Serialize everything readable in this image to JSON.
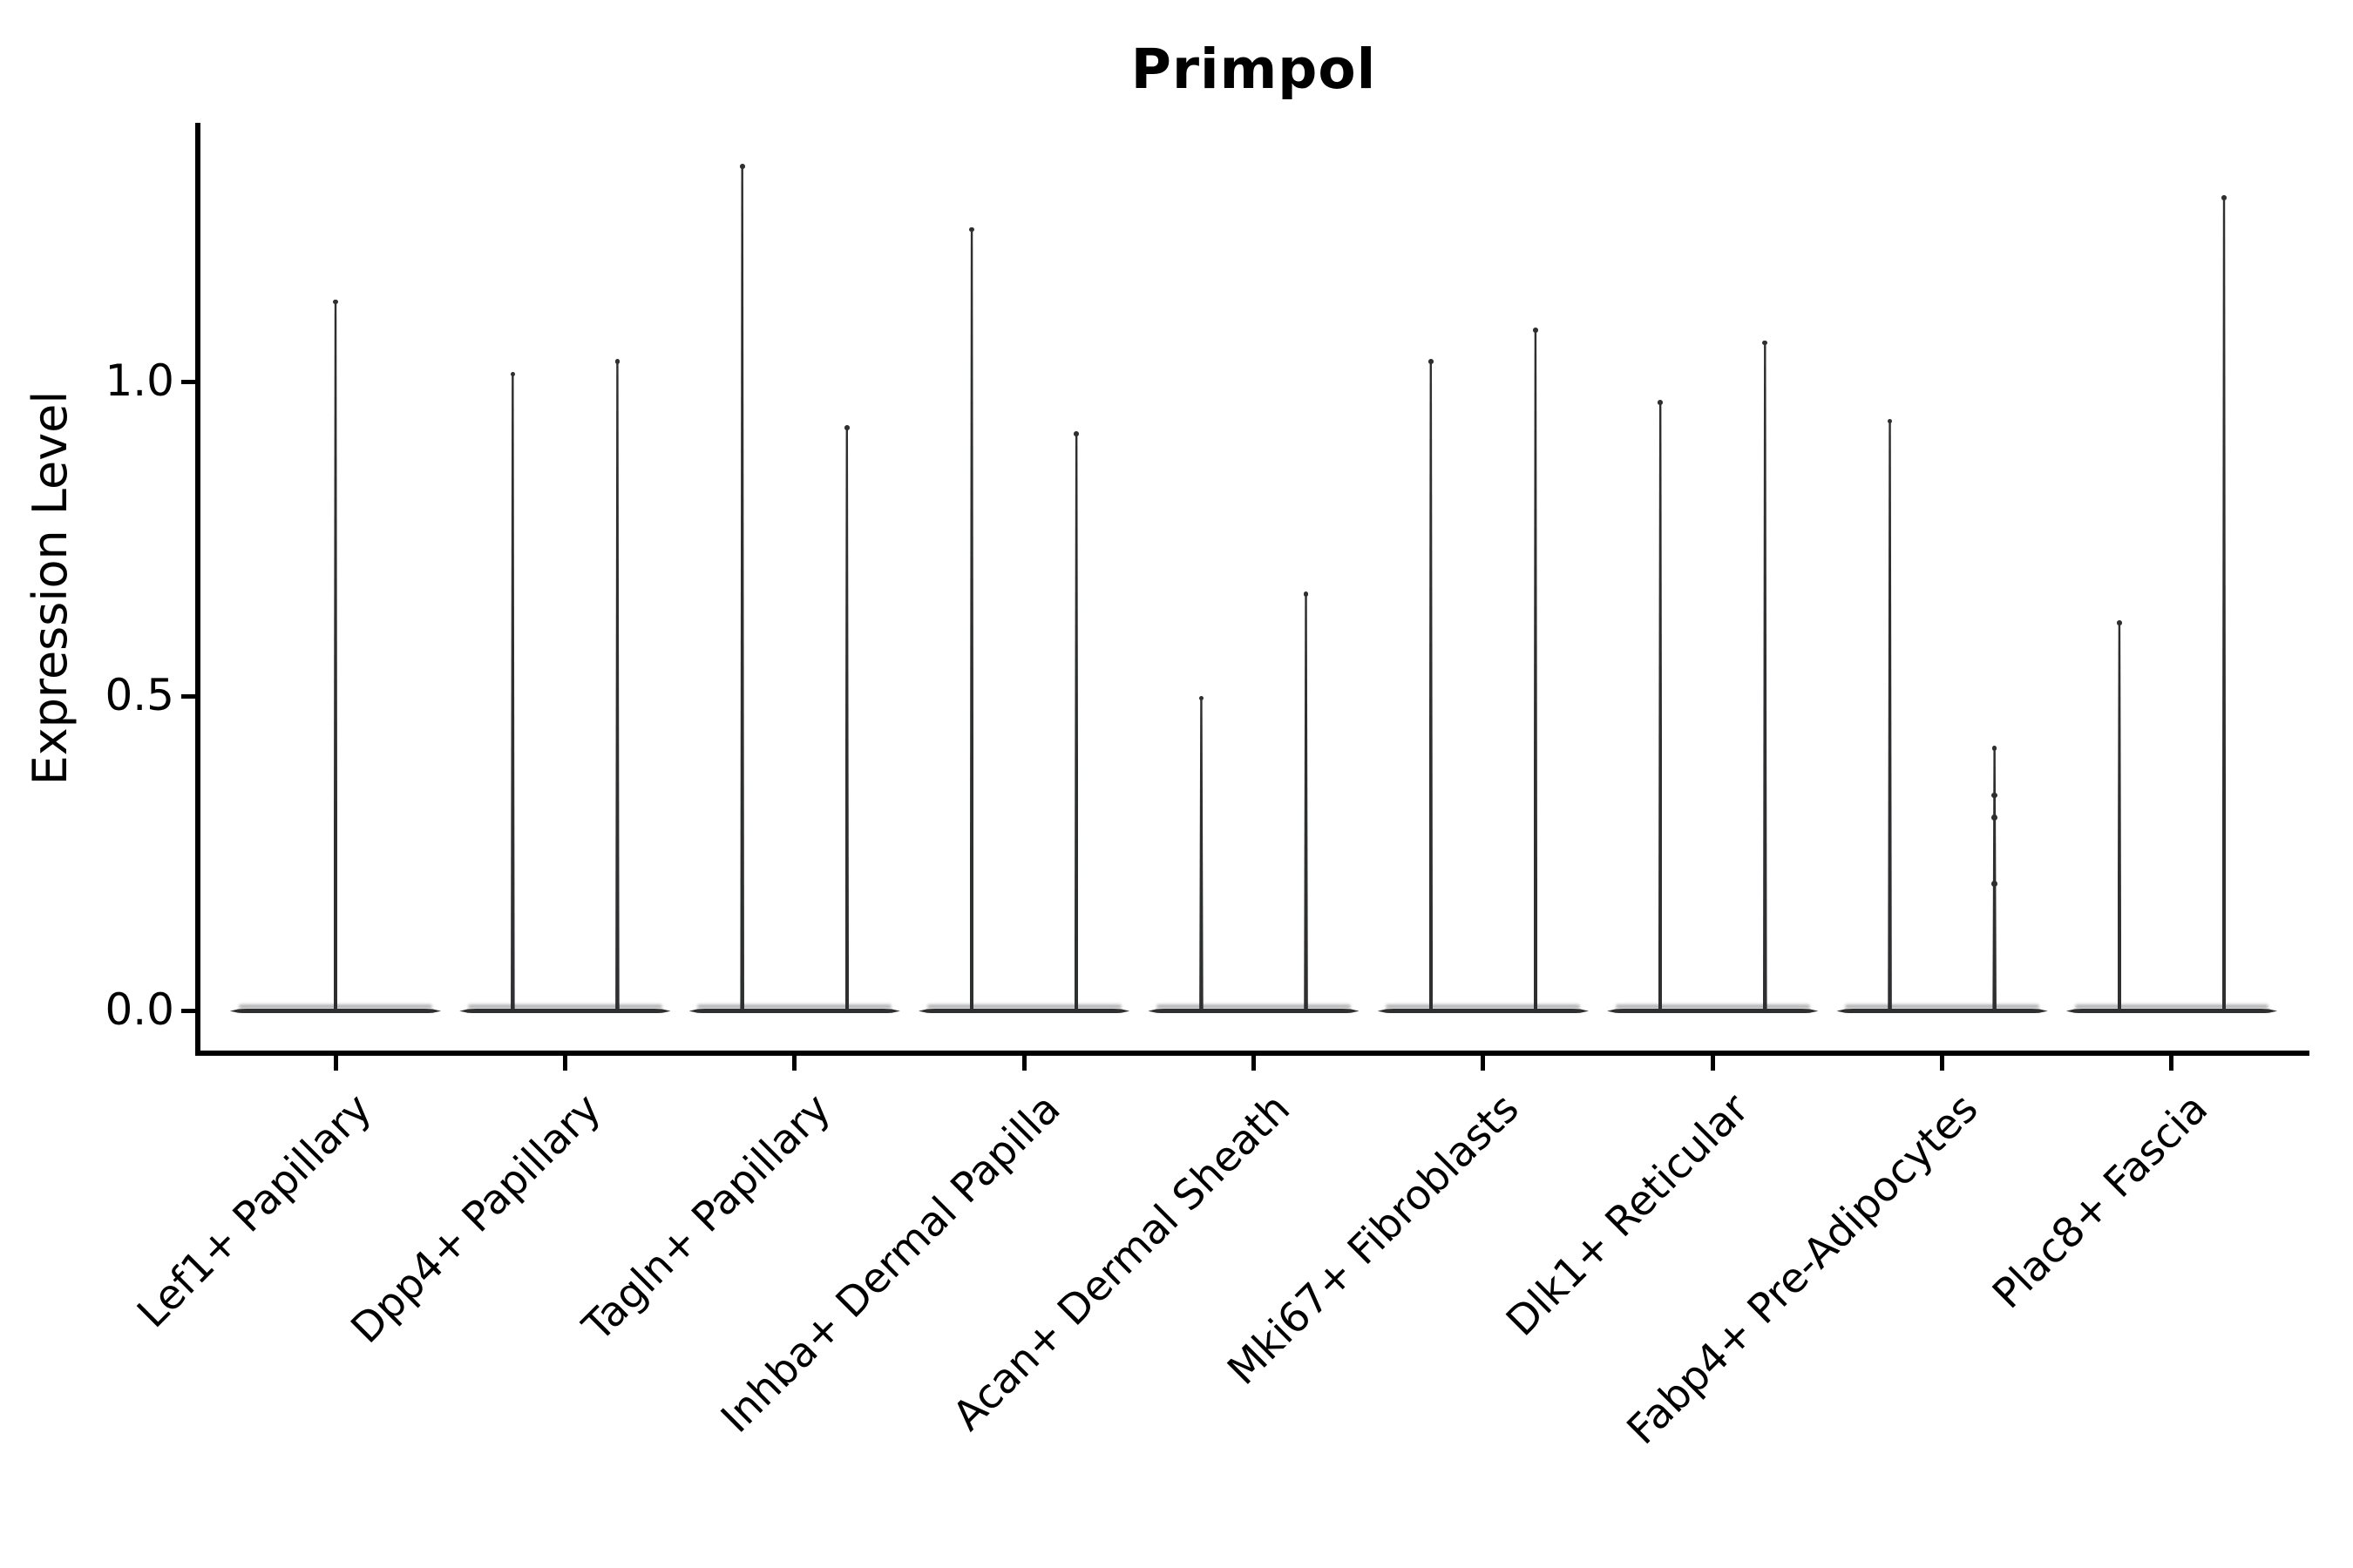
{
  "chart_data": {
    "type": "violin",
    "title": "Primpol",
    "ylabel": "Expression Level",
    "ylim": [
      -0.067,
      1.412
    ],
    "yticks": [
      0.0,
      0.5,
      1.0
    ],
    "ytick_labels": [
      "0.0",
      "0.5",
      "1.0"
    ],
    "grid": false,
    "legend_position": "none",
    "categories": [
      "Lef1+ Papillary",
      "Dpp4+ Papillary",
      "Tagln+ Papillary",
      "Inhba+ Dermal Papilla",
      "Acan+ Dermal Sheath",
      "Mki67+ Fibroblasts",
      "Dlk1+ Reticular",
      "Fabp4+ Pre-Adipocytes",
      "Plac8+ Fascia"
    ],
    "body_halfwidth": 0.46,
    "violins": [
      {
        "category": "Lef1+ Papillary",
        "baseline": 0.0,
        "spikes": [
          {
            "dx": 0.0,
            "peak": 1.13
          }
        ]
      },
      {
        "category": "Dpp4+ Papillary",
        "baseline": 0.0,
        "spikes": [
          {
            "dx": -0.228,
            "peak": 1.015
          },
          {
            "dx": 0.228,
            "peak": 1.035
          }
        ]
      },
      {
        "category": "Tagln+ Papillary",
        "baseline": 0.0,
        "spikes": [
          {
            "dx": -0.228,
            "peak": 1.345
          },
          {
            "dx": 0.228,
            "peak": 0.93
          }
        ]
      },
      {
        "category": "Inhba+ Dermal Papilla",
        "baseline": 0.0,
        "spikes": [
          {
            "dx": -0.228,
            "peak": 1.245
          },
          {
            "dx": 0.228,
            "peak": 0.92
          }
        ]
      },
      {
        "category": "Acan+ Dermal Sheath",
        "baseline": 0.0,
        "spikes": [
          {
            "dx": -0.228,
            "peak": 0.5
          },
          {
            "dx": 0.228,
            "peak": 0.665
          }
        ]
      },
      {
        "category": "Mki67+ Fibroblasts",
        "baseline": 0.0,
        "spikes": [
          {
            "dx": -0.228,
            "peak": 1.035
          },
          {
            "dx": 0.228,
            "peak": 1.085
          }
        ]
      },
      {
        "category": "Dlk1+ Reticular",
        "baseline": 0.0,
        "spikes": [
          {
            "dx": -0.228,
            "peak": 0.97
          },
          {
            "dx": 0.228,
            "peak": 1.065
          }
        ]
      },
      {
        "category": "Fabp4+ Pre-Adipocytes",
        "baseline": 0.0,
        "spikes": [
          {
            "dx": -0.228,
            "peak": 0.94
          },
          {
            "dx": 0.228,
            "peak": 0.42,
            "points": [
              0.343,
              0.308,
              0.202
            ]
          }
        ]
      },
      {
        "category": "Plac8+ Fascia",
        "baseline": 0.0,
        "spikes": [
          {
            "dx": -0.228,
            "peak": 0.62
          },
          {
            "dx": 0.228,
            "peak": 1.295
          }
        ]
      }
    ],
    "colors": {
      "violin": "#2e2f31",
      "axis": "#000000",
      "text": "#000000",
      "background": "#ffffff"
    }
  }
}
